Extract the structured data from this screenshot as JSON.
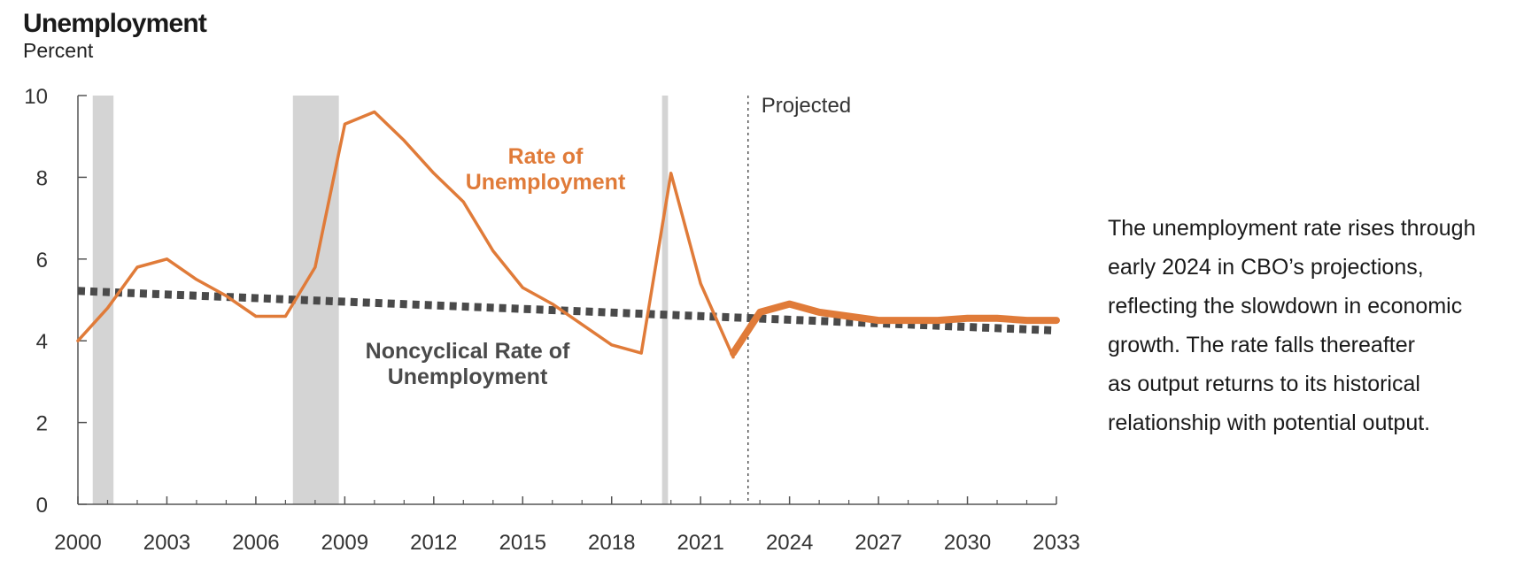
{
  "title": "Unemployment",
  "subtitle": "Percent",
  "note": "The unemployment rate rises through\nearly 2024 in CBO’s projections,\nreflecting the slowdown in economic\ngrowth. The rate falls thereafter\nas output returns to its historical\nrelationship with potential output.",
  "colors": {
    "unemployment": "#e07b39",
    "noncyclical": "#4a4a4a",
    "recession": "#d4d4d4",
    "axis": "#555555"
  },
  "chart_data": {
    "type": "line",
    "title": "Unemployment",
    "ylabel": "Percent",
    "xlabel": "",
    "xlim": [
      2000,
      2033
    ],
    "ylim": [
      0,
      10
    ],
    "x_ticks": [
      2000,
      2003,
      2006,
      2009,
      2012,
      2015,
      2018,
      2021,
      2024,
      2027,
      2030,
      2033
    ],
    "x_tick_labels": [
      "2000",
      "2003",
      "2006",
      "2009",
      "2012",
      "2015",
      "2018",
      "2021",
      "2024",
      "2027",
      "2030",
      "2033"
    ],
    "y_ticks": [
      0,
      2,
      4,
      6,
      8,
      10
    ],
    "y_tick_labels": [
      "0",
      "2",
      "4",
      "6",
      "8",
      "10"
    ],
    "recessions": [
      [
        2000.5,
        2001.2
      ],
      [
        2007.25,
        2008.8
      ],
      [
        2019.7,
        2019.9
      ]
    ],
    "projection_start": 2022.6,
    "projection_label": "Projected",
    "series": [
      {
        "name": "Rate of Unemployment",
        "label_lines": [
          "Rate of",
          "Unemployment"
        ],
        "style": "solid",
        "historical": {
          "x": [
            2000,
            2001,
            2002,
            2003,
            2004,
            2005,
            2006,
            2007,
            2008,
            2009,
            2010,
            2011,
            2012,
            2013,
            2014,
            2015,
            2016,
            2017,
            2018,
            2019,
            2020,
            2021,
            2022.1
          ],
          "y": [
            4.0,
            4.8,
            5.8,
            6.0,
            5.5,
            5.1,
            4.6,
            4.6,
            5.8,
            9.3,
            9.6,
            8.9,
            8.1,
            7.4,
            6.2,
            5.3,
            4.9,
            4.4,
            3.9,
            3.7,
            8.1,
            5.4,
            3.6
          ]
        },
        "projected": {
          "x": [
            2022.1,
            2023,
            2024,
            2025,
            2026,
            2027,
            2028,
            2029,
            2030,
            2031,
            2032,
            2033
          ],
          "y": [
            3.7,
            4.7,
            4.9,
            4.7,
            4.6,
            4.5,
            4.5,
            4.5,
            4.55,
            4.55,
            4.5,
            4.5
          ]
        }
      },
      {
        "name": "Noncyclical Rate of Unemployment",
        "label_lines": [
          "Noncyclical Rate of",
          "Unemployment"
        ],
        "style": "dotted",
        "x": [
          2000,
          2033
        ],
        "y": [
          5.22,
          4.25
        ]
      }
    ]
  }
}
